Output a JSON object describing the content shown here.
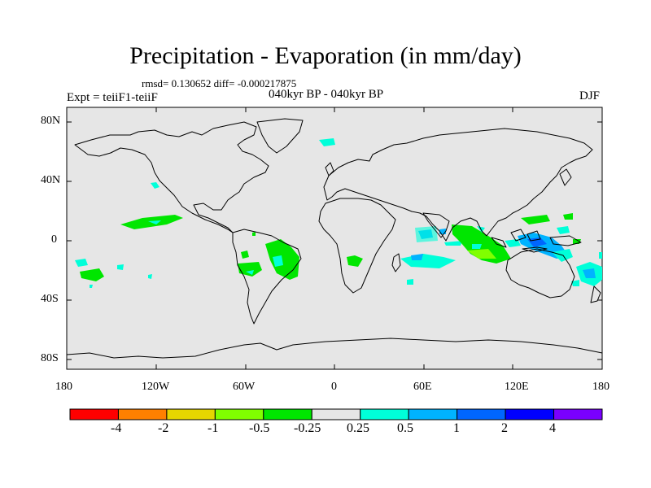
{
  "title": "Precipitation - Evaporation (in mm/day)",
  "stats": "rmsd= 0.130652 diff= -0.000217875",
  "subtitle": "040kyr BP - 040kyr BP",
  "left_label": "Expt = teiiF1-teiiF",
  "right_label": "DJF",
  "y_ticks": [
    "80N",
    "40N",
    "0",
    "40S",
    "80S"
  ],
  "x_ticks": [
    "180",
    "120W",
    "60W",
    "0",
    "60E",
    "120E",
    "180"
  ],
  "colorbar": {
    "colors": [
      "#ff0000",
      "#ff8000",
      "#e6d600",
      "#80ff00",
      "#00e600",
      "#e6e6e6",
      "#00ffd9",
      "#00b3ff",
      "#0066ff",
      "#0000ff",
      "#7a00ff"
    ],
    "labels": [
      "-4",
      "-2",
      "-1",
      "-0.5",
      "-0.25",
      "0.25",
      "0.5",
      "1",
      "2",
      "4"
    ]
  },
  "colors": {
    "ocean_fill": "#e6e6e6",
    "coast": "#000000"
  }
}
